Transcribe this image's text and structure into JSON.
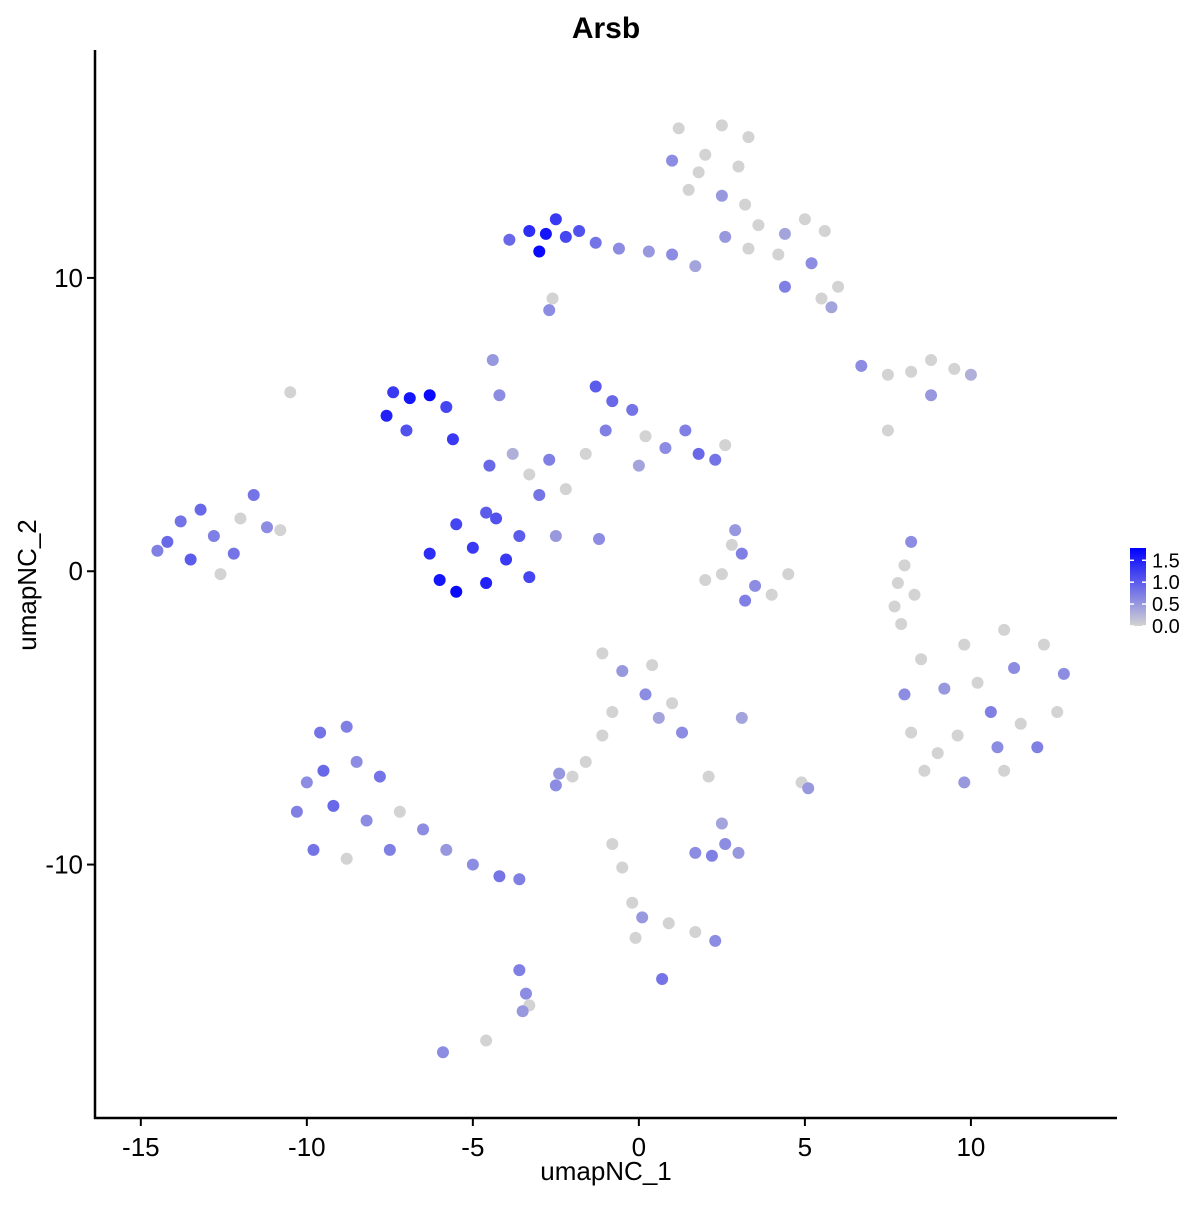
{
  "chart_data": {
    "type": "scatter",
    "title": "Arsb",
    "x_label": "umapNC_1",
    "y_label": "umapNC_2",
    "xlim": [
      -16.38,
      14.4
    ],
    "ylim": [
      -18.64,
      17.77
    ],
    "xticks": [
      -15,
      -10,
      -5,
      0,
      5,
      10
    ],
    "yticks": [
      -10,
      0,
      10
    ],
    "color_low": "#d3d3d3",
    "color_high": "#0000ff",
    "color_lim": [
      0,
      1.78
    ],
    "color_ticks": [
      {
        "value": 0,
        "label": "0.0"
      },
      {
        "value": 0.5,
        "label": "0.5"
      },
      {
        "value": 1,
        "label": "1.0"
      },
      {
        "value": 1.5,
        "label": "1.5"
      }
    ],
    "x": [
      1.2,
      2.5,
      3.3,
      1.0,
      2.0,
      3.0,
      1.5,
      2.5,
      3.2,
      3.6,
      4.4,
      5.0,
      5.6,
      4.2,
      5.2,
      6.0,
      5.5,
      4.4,
      3.3,
      2.6,
      1.8,
      5.8,
      -3.3,
      -3.0,
      -2.8,
      -2.5,
      -2.2,
      -1.8,
      -1.3,
      -0.6,
      0.3,
      1.0,
      1.7,
      -3.9,
      -2.7,
      -2.6,
      6.7,
      7.5,
      8.2,
      8.8,
      9.5,
      10.0,
      8.8,
      7.5,
      -7.4,
      -7.6,
      -6.9,
      -6.3,
      -5.8,
      -7.0,
      -5.6,
      -4.4,
      -4.2,
      -4.5,
      -3.8,
      -3.3,
      -2.7,
      -2.2,
      -3.0,
      -1.6,
      -4.6,
      -2.5,
      -1.2,
      -1.3,
      -0.8,
      -0.2,
      -1.0,
      0.2,
      0.8,
      1.4,
      1.8,
      2.3,
      2.6,
      0.0,
      -6.3,
      -6.0,
      -5.5,
      -5.0,
      -4.6,
      -4.0,
      -3.6,
      -5.5,
      -4.3,
      -3.3,
      -14.2,
      -13.8,
      -13.2,
      -13.5,
      -12.8,
      -12.2,
      -12.6,
      -11.6,
      -11.2,
      -10.8,
      -14.5,
      -12.0,
      2.9,
      3.1,
      2.5,
      2.0,
      3.5,
      4.0,
      4.5,
      3.2,
      2.8,
      8.2,
      8.0,
      7.8,
      7.7,
      8.3,
      8.5,
      9.8,
      11.0,
      12.2,
      12.8,
      12.6,
      12.0,
      11.0,
      9.8,
      8.6,
      8.2,
      8.0,
      9.2,
      10.2,
      11.3,
      10.6,
      9.6,
      11.5,
      10.8,
      9.0,
      7.9,
      -9.6,
      -8.8,
      -9.5,
      -8.5,
      -7.8,
      -10.3,
      -9.2,
      -8.2,
      -7.2,
      -9.8,
      -8.8,
      -7.5,
      -6.5,
      -5.8,
      -5.0,
      -4.2,
      -3.6,
      -10.0,
      -3.6,
      -3.4,
      -3.5,
      -3.3,
      -1.1,
      -0.5,
      0.4,
      0.2,
      1.0,
      1.3,
      -0.8,
      -1.1,
      -1.6,
      -2.4,
      -2.0,
      -2.5,
      0.6,
      1.7,
      2.2,
      2.6,
      3.0,
      2.5,
      -0.8,
      -0.5,
      -0.2,
      0.1,
      0.9,
      1.7,
      2.3,
      -0.1,
      4.9,
      5.1,
      -5.9,
      0.7,
      -10.5,
      3.1,
      2.1,
      -4.6
    ],
    "values": [
      15.1,
      15.2,
      14.8,
      14.0,
      14.2,
      13.8,
      13.0,
      12.8,
      12.5,
      11.8,
      11.5,
      12.0,
      11.6,
      10.8,
      10.5,
      9.7,
      9.3,
      9.7,
      11.0,
      11.4,
      13.6,
      9.0,
      11.6,
      10.9,
      11.5,
      12.0,
      11.4,
      11.6,
      11.2,
      11.0,
      10.9,
      10.8,
      10.4,
      11.3,
      8.9,
      9.3,
      7.0,
      6.7,
      6.8,
      7.2,
      6.9,
      6.7,
      6.0,
      4.8,
      6.1,
      5.3,
      5.9,
      6.0,
      5.6,
      4.8,
      4.5,
      7.2,
      6.0,
      3.6,
      4.0,
      3.3,
      3.8,
      2.8,
      2.6,
      4.0,
      2.0,
      1.2,
      1.1,
      6.3,
      5.8,
      5.5,
      4.8,
      4.6,
      4.2,
      4.8,
      4.0,
      3.8,
      4.3,
      3.6,
      0.6,
      -0.3,
      1.6,
      0.8,
      -0.4,
      0.4,
      1.2,
      -0.7,
      1.8,
      -0.2,
      1.0,
      1.7,
      2.1,
      0.4,
      1.2,
      0.6,
      -0.1,
      2.6,
      1.5,
      1.4,
      0.7,
      1.8,
      1.4,
      0.6,
      -0.1,
      -0.3,
      -0.5,
      -0.8,
      -0.1,
      -1.0,
      0.9,
      1.0,
      0.2,
      -0.4,
      -1.2,
      -0.8,
      -3.0,
      -2.5,
      -2.0,
      -2.5,
      -3.5,
      -4.8,
      -6.0,
      -6.8,
      -7.2,
      -6.8,
      -5.5,
      -4.2,
      -4.0,
      -3.8,
      -3.3,
      -4.8,
      -5.6,
      -5.2,
      -6.0,
      -6.2,
      -1.8,
      -5.5,
      -5.3,
      -6.8,
      -6.5,
      -7.0,
      -8.2,
      -8.0,
      -8.5,
      -8.2,
      -9.5,
      -9.8,
      -9.5,
      -8.8,
      -9.5,
      -10.0,
      -10.4,
      -10.5,
      -7.2,
      -13.6,
      -14.4,
      -15.0,
      -14.8,
      -2.8,
      -3.4,
      -3.2,
      -4.2,
      -4.5,
      -5.5,
      -4.8,
      -5.6,
      -6.5,
      -6.9,
      -7.0,
      -7.3,
      -5.0,
      -9.6,
      -9.7,
      -9.3,
      -9.6,
      -8.6,
      -9.3,
      -10.1,
      -11.3,
      -11.8,
      -12.0,
      -12.3,
      -12.6,
      -12.5,
      -7.2,
      -7.4,
      -16.4,
      -13.9,
      6.1,
      -5.0,
      -7.0,
      -16.0
    ],
    "expression": [
      0,
      0,
      0,
      0.6,
      0,
      0,
      0,
      0.5,
      0,
      0,
      0.4,
      0,
      0,
      0,
      0.6,
      0,
      0,
      0.7,
      0,
      0.5,
      0,
      0.4,
      1.4,
      1.7,
      1.6,
      1.3,
      1.2,
      1.1,
      0.8,
      0.6,
      0.5,
      0.6,
      0.4,
      0.9,
      0.6,
      0,
      0.6,
      0,
      0,
      0,
      0,
      0.3,
      0.5,
      0,
      1.3,
      1.5,
      1.6,
      1.7,
      1.2,
      1.1,
      1.3,
      0.5,
      0.6,
      0.9,
      0.3,
      0,
      0.7,
      0,
      0.8,
      0,
      1.0,
      0.5,
      0.6,
      1.0,
      0.9,
      0.8,
      0.7,
      0,
      0.6,
      0.7,
      0.9,
      0.8,
      0,
      0.4,
      1.4,
      1.6,
      1.2,
      1.3,
      1.5,
      1.3,
      1.0,
      1.7,
      1.1,
      1.2,
      0.9,
      0.8,
      0.9,
      1.0,
      0.7,
      0.8,
      0,
      0.8,
      0.6,
      0,
      0.7,
      0,
      0.5,
      0.7,
      0,
      0,
      0.6,
      0,
      0,
      0.7,
      0,
      0.6,
      0,
      0,
      0,
      0,
      0,
      0,
      0,
      0,
      0.6,
      0,
      0.7,
      0,
      0.5,
      0,
      0,
      0.6,
      0.5,
      0,
      0.6,
      0.7,
      0,
      0,
      0.6,
      0,
      0,
      0.8,
      0.7,
      0.9,
      0.6,
      0.8,
      0.7,
      0.9,
      0.6,
      0,
      0.8,
      0,
      0.7,
      0.6,
      0.5,
      0.6,
      0.8,
      0.7,
      0.6,
      0.7,
      0.6,
      0.5,
      0,
      0,
      0.5,
      0,
      0.6,
      0,
      0.6,
      0,
      0,
      0,
      0.5,
      0,
      0.6,
      0.4,
      0.6,
      0.7,
      0.6,
      0.5,
      0.4,
      0,
      0,
      0,
      0.5,
      0,
      0,
      0.6,
      0,
      0,
      0.5,
      0.6,
      0.8,
      0,
      0.4,
      0,
      0
    ]
  }
}
